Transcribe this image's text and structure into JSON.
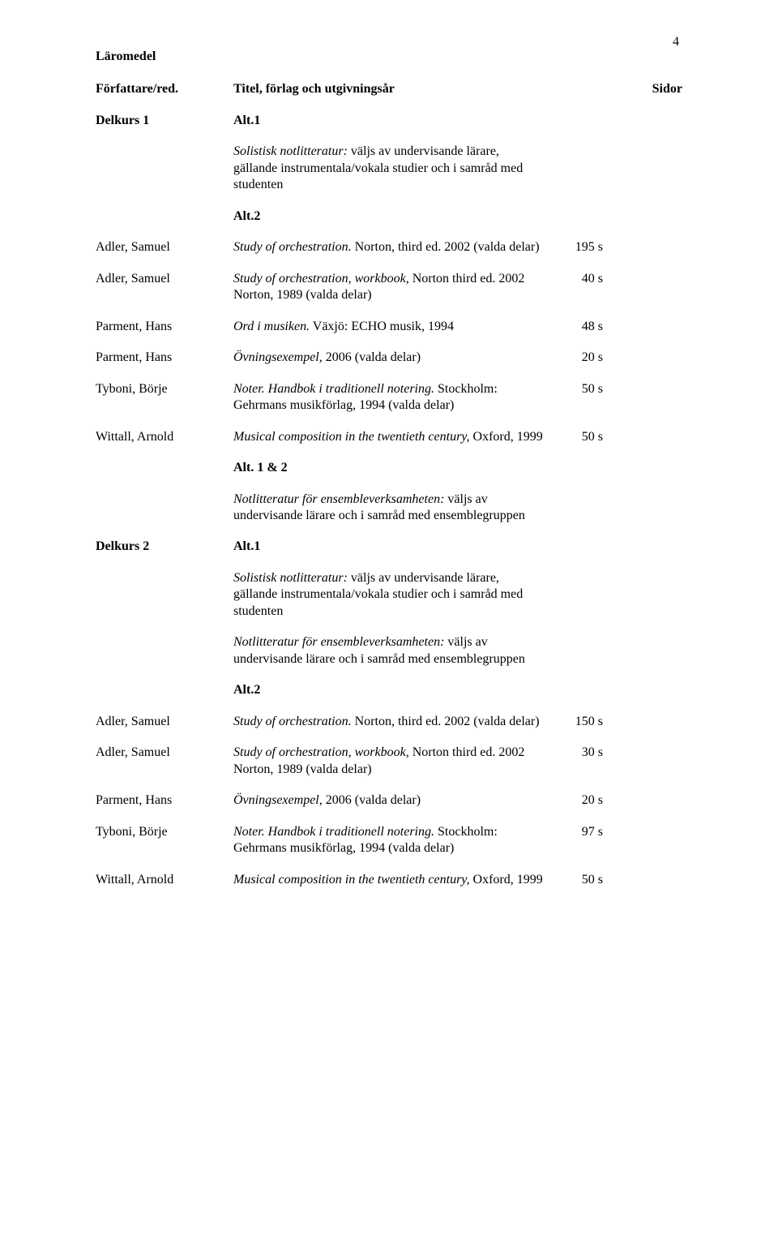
{
  "page_number": "4",
  "header": {
    "heading_line1": "Läromedel",
    "heading_line2": "Författare/red.",
    "col_title_label": "Titel, förlag och utgivningsår",
    "col_pages_label": "Sidor"
  },
  "delkurs1_label": "Delkurs 1",
  "delkurs2_label": "Delkurs 2",
  "alt1": "Alt.1",
  "alt2": "Alt.2",
  "alt12": "Alt. 1 & 2",
  "solistisk_prefix": "Solistisk notlitteratur:",
  "solistisk_rest": " väljs av undervisande lärare, gällande instrumentala/vokala studier och i samråd med studenten",
  "notlitt_prefix": "Notlitteratur för ensembleverksamheten:",
  "notlitt_rest": " väljs av undervisande lärare och i samråd med ensemblegruppen",
  "rows_top": [
    {
      "author": "Adler, Samuel",
      "italic": "Study of orchestration.",
      "after": " Norton, third ed. 2002 (valda delar)",
      "pages": "195 s"
    },
    {
      "author": "Adler, Samuel",
      "italic": "Study of orchestration, workbook,",
      "after": " Norton  third ed. 2002 Norton, 1989 (valda delar)",
      "pages": "40 s"
    },
    {
      "author": "Parment, Hans",
      "italic": "Ord i musiken.",
      "after": " Växjö: ECHO musik, 1994",
      "pages": "48 s"
    },
    {
      "author": "Parment, Hans",
      "italic": "Övningsexempel,",
      "after": " 2006 (valda delar)",
      "pages": "20 s"
    },
    {
      "author": "Tyboni, Börje",
      "italic": "Noter. Handbok i traditionell notering.",
      "after": " Stockholm: Gehrmans musikförlag, 1994 (valda delar)",
      "pages": "50 s"
    },
    {
      "author": "Wittall, Arnold",
      "italic": "Musical composition in the twentieth century,",
      "after": "  Oxford, 1999",
      "pages": "50 s"
    }
  ],
  "rows_bottom": [
    {
      "author": "Adler, Samuel",
      "italic": "Study of orchestration.",
      "after": " Norton, third ed. 2002 (valda delar)",
      "pages": "150 s"
    },
    {
      "author": "Adler, Samuel",
      "italic": "Study of orchestration, workbook,",
      "after": " Norton  third ed. 2002 Norton, 1989 (valda delar)",
      "pages": "30 s"
    },
    {
      "author": "Parment, Hans",
      "italic": "Övningsexempel,",
      "after": " 2006 (valda delar)",
      "pages": "20 s"
    },
    {
      "author": "Tyboni, Börje",
      "italic": "Noter. Handbok i traditionell notering.",
      "after": " Stockholm: Gehrmans musikförlag, 1994 (valda delar)",
      "pages": "97 s"
    },
    {
      "author": "Wittall, Arnold",
      "italic": "Musical composition in the twentieth century,",
      "after": "  Oxford, 1999",
      "pages": "50 s"
    }
  ]
}
